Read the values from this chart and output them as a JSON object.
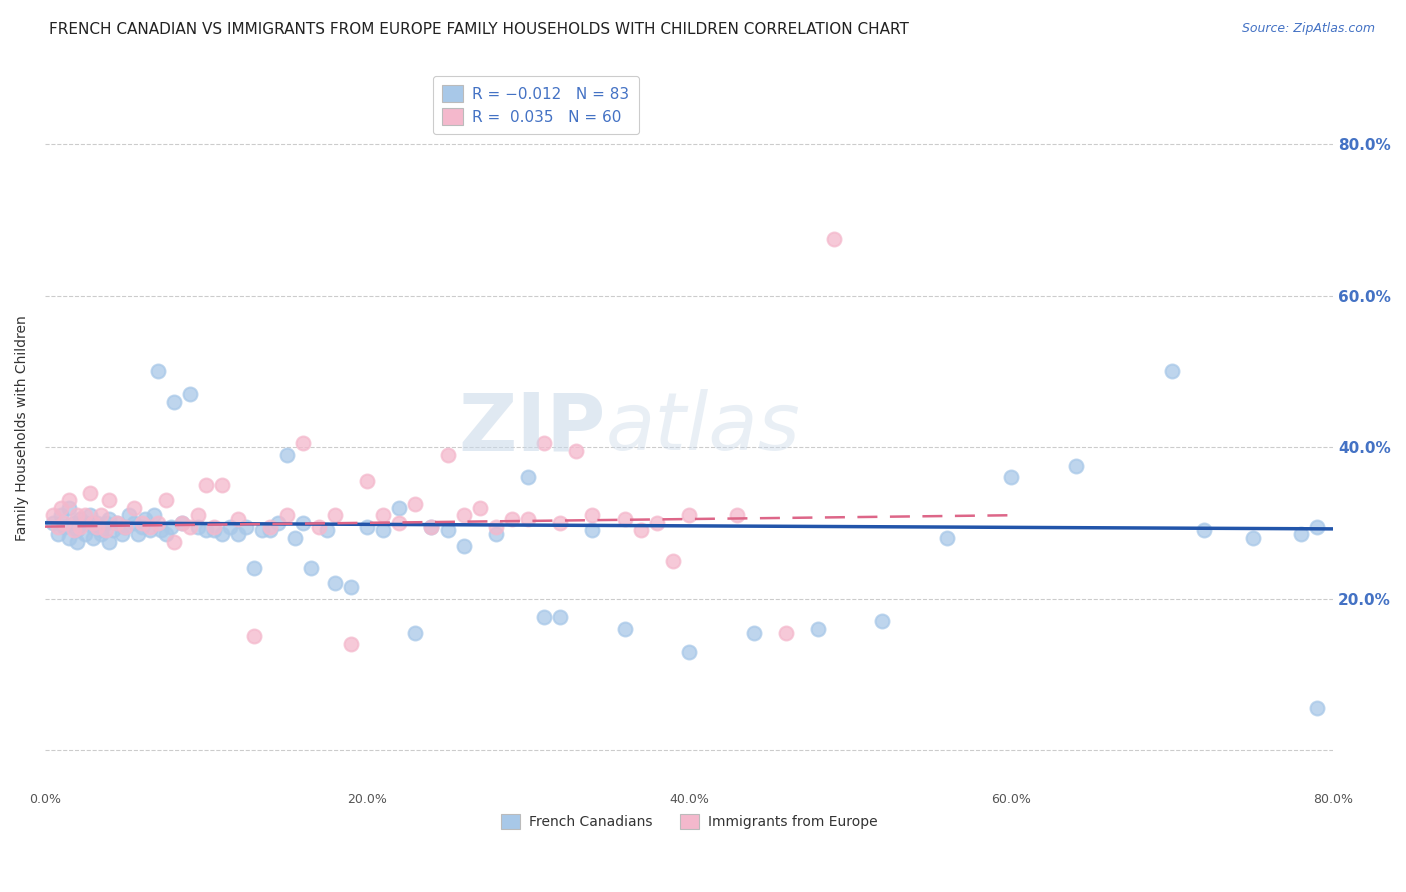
{
  "title": "FRENCH CANADIAN VS IMMIGRANTS FROM EUROPE FAMILY HOUSEHOLDS WITH CHILDREN CORRELATION CHART",
  "source": "Source: ZipAtlas.com",
  "ylabel": "Family Households with Children",
  "xlim": [
    0,
    0.8
  ],
  "ylim": [
    -0.05,
    0.9
  ],
  "grid_color": "#cccccc",
  "background_color": "#ffffff",
  "blue_color": "#a8c8e8",
  "pink_color": "#f4b8cc",
  "line_blue": "#2255aa",
  "line_pink": "#dd6688",
  "R_blue": -0.012,
  "N_blue": 83,
  "R_pink": 0.035,
  "N_pink": 60,
  "legend_label_blue": "French Canadians",
  "legend_label_pink": "Immigrants from Europe",
  "watermark_zip": "ZIP",
  "watermark_atlas": "atlas",
  "title_fontsize": 11,
  "source_fontsize": 9,
  "axis_label_fontsize": 10,
  "tick_fontsize": 9,
  "legend_fontsize": 10,
  "blue_x": [
    0.005,
    0.008,
    0.01,
    0.012,
    0.015,
    0.015,
    0.018,
    0.02,
    0.02,
    0.022,
    0.025,
    0.025,
    0.028,
    0.03,
    0.03,
    0.032,
    0.035,
    0.035,
    0.038,
    0.04,
    0.04,
    0.042,
    0.045,
    0.048,
    0.05,
    0.052,
    0.055,
    0.058,
    0.06,
    0.062,
    0.065,
    0.068,
    0.07,
    0.072,
    0.075,
    0.078,
    0.08,
    0.085,
    0.09,
    0.095,
    0.1,
    0.105,
    0.11,
    0.115,
    0.12,
    0.125,
    0.13,
    0.135,
    0.14,
    0.145,
    0.15,
    0.155,
    0.16,
    0.165,
    0.175,
    0.18,
    0.19,
    0.2,
    0.21,
    0.22,
    0.23,
    0.24,
    0.25,
    0.26,
    0.28,
    0.3,
    0.31,
    0.32,
    0.34,
    0.36,
    0.4,
    0.44,
    0.48,
    0.52,
    0.56,
    0.6,
    0.64,
    0.7,
    0.72,
    0.75,
    0.78,
    0.79,
    0.79
  ],
  "blue_y": [
    0.3,
    0.285,
    0.31,
    0.295,
    0.28,
    0.32,
    0.3,
    0.29,
    0.275,
    0.305,
    0.285,
    0.3,
    0.31,
    0.295,
    0.28,
    0.3,
    0.29,
    0.285,
    0.3,
    0.305,
    0.275,
    0.29,
    0.3,
    0.285,
    0.295,
    0.31,
    0.3,
    0.285,
    0.295,
    0.305,
    0.29,
    0.31,
    0.5,
    0.29,
    0.285,
    0.295,
    0.46,
    0.3,
    0.47,
    0.295,
    0.29,
    0.29,
    0.285,
    0.295,
    0.285,
    0.295,
    0.24,
    0.29,
    0.29,
    0.3,
    0.39,
    0.28,
    0.3,
    0.24,
    0.29,
    0.22,
    0.215,
    0.295,
    0.29,
    0.32,
    0.155,
    0.295,
    0.29,
    0.27,
    0.285,
    0.36,
    0.175,
    0.175,
    0.29,
    0.16,
    0.13,
    0.155,
    0.16,
    0.17,
    0.28,
    0.36,
    0.375,
    0.5,
    0.29,
    0.28,
    0.285,
    0.295,
    0.055
  ],
  "pink_x": [
    0.005,
    0.008,
    0.01,
    0.012,
    0.015,
    0.018,
    0.02,
    0.022,
    0.025,
    0.028,
    0.03,
    0.032,
    0.035,
    0.038,
    0.04,
    0.045,
    0.05,
    0.055,
    0.06,
    0.065,
    0.07,
    0.075,
    0.08,
    0.085,
    0.09,
    0.095,
    0.1,
    0.105,
    0.11,
    0.12,
    0.13,
    0.14,
    0.15,
    0.16,
    0.17,
    0.18,
    0.19,
    0.2,
    0.21,
    0.22,
    0.23,
    0.24,
    0.25,
    0.26,
    0.27,
    0.28,
    0.29,
    0.3,
    0.31,
    0.32,
    0.33,
    0.34,
    0.36,
    0.37,
    0.38,
    0.39,
    0.4,
    0.43,
    0.46,
    0.49
  ],
  "pink_y": [
    0.31,
    0.295,
    0.32,
    0.3,
    0.33,
    0.29,
    0.31,
    0.295,
    0.31,
    0.34,
    0.3,
    0.295,
    0.31,
    0.29,
    0.33,
    0.3,
    0.295,
    0.32,
    0.3,
    0.295,
    0.3,
    0.33,
    0.275,
    0.3,
    0.295,
    0.31,
    0.35,
    0.295,
    0.35,
    0.305,
    0.15,
    0.295,
    0.31,
    0.405,
    0.295,
    0.31,
    0.14,
    0.355,
    0.31,
    0.3,
    0.325,
    0.295,
    0.39,
    0.31,
    0.32,
    0.295,
    0.305,
    0.305,
    0.405,
    0.3,
    0.395,
    0.31,
    0.305,
    0.29,
    0.3,
    0.25,
    0.31,
    0.31,
    0.155,
    0.675
  ],
  "blue_line_x": [
    0.0,
    0.8
  ],
  "blue_line_y": [
    0.3,
    0.292
  ],
  "pink_line_x": [
    0.0,
    0.6
  ],
  "pink_line_y": [
    0.295,
    0.31
  ]
}
